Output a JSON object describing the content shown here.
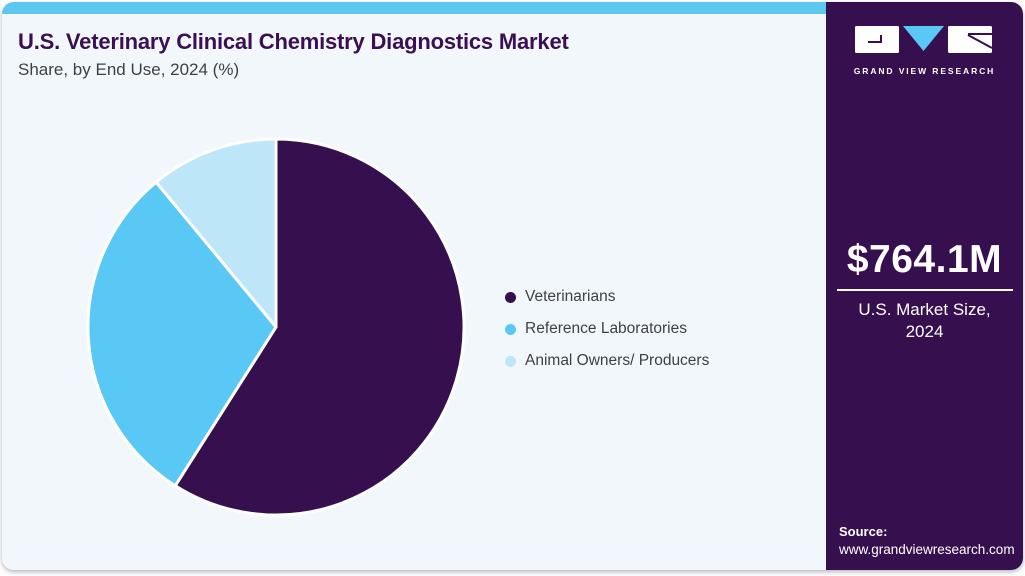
{
  "header": {
    "title": "U.S. Veterinary Clinical Chemistry Diagnostics Market",
    "subtitle": "Share, by End Use, 2024 (%)"
  },
  "sidebar": {
    "brand": "GRAND VIEW RESEARCH",
    "market_size_value": "$764.1M",
    "market_size_label": "U.S. Market Size, 2024",
    "source_label": "Source:",
    "source_url": "www.grandviewresearch.com"
  },
  "colors": {
    "brand_purple": "#36104e",
    "accent_bar": "#5ec7f0",
    "pie_blue": "#5ac8f5",
    "pie_light_blue": "#bde6f9",
    "main_background": "#f2f7fb",
    "title_color": "#3a1053",
    "text_color": "#3f3f49"
  },
  "chart_data": {
    "type": "pie",
    "title": "U.S. Veterinary Clinical Chemistry Diagnostics Market Share, by End Use, 2024 (%)",
    "unit": "%",
    "start_angle_deg": 0,
    "direction": "clockwise",
    "legend_position": "right",
    "series": [
      {
        "name": "Veterinarians",
        "value": 59,
        "color": "#36104e"
      },
      {
        "name": "Reference Laboratories",
        "value": 30,
        "color": "#5ac8f5"
      },
      {
        "name": "Animal Owners/ Producers",
        "value": 11,
        "color": "#bde6f9"
      }
    ]
  }
}
